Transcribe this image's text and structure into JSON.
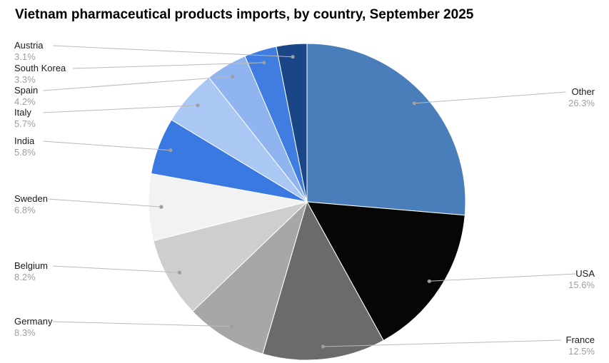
{
  "chart_data": {
    "type": "pie",
    "title": "Vietnam pharmaceutical products imports,  by country, September 2025",
    "unit": "%",
    "start_angle_deg": 0,
    "direction": "clockwise",
    "legend_position": "none",
    "label_style": "outside labels with gray leader lines and dots, category name in black with gray percentage beneath",
    "slices": [
      {
        "label": "Other",
        "value": 26.3,
        "color": "#4a7ebb"
      },
      {
        "label": "USA",
        "value": 15.6,
        "color": "#060606"
      },
      {
        "label": "France",
        "value": 12.5,
        "color": "#6b6b6b"
      },
      {
        "label": "Germany",
        "value": 8.3,
        "color": "#a7a7a7"
      },
      {
        "label": "Belgium",
        "value": 8.2,
        "color": "#cecece"
      },
      {
        "label": "Sweden",
        "value": 6.8,
        "color": "#f2f2f2"
      },
      {
        "label": "India",
        "value": 5.8,
        "color": "#3a79e2"
      },
      {
        "label": "Italy",
        "value": 5.7,
        "color": "#abc8f5"
      },
      {
        "label": "Spain",
        "value": 4.2,
        "color": "#8fb4ef"
      },
      {
        "label": "South Korea",
        "value": 3.3,
        "color": "#3f7de0"
      },
      {
        "label": "Austria",
        "value": 3.1,
        "color": "#1a4587"
      }
    ],
    "colors": {
      "leader_line": "#b9b9b9",
      "leader_dot": "#9e9e9e",
      "slice_border": "#ffffff",
      "name_text": "#1a1a1a",
      "pct_text": "#9e9e9e"
    }
  }
}
